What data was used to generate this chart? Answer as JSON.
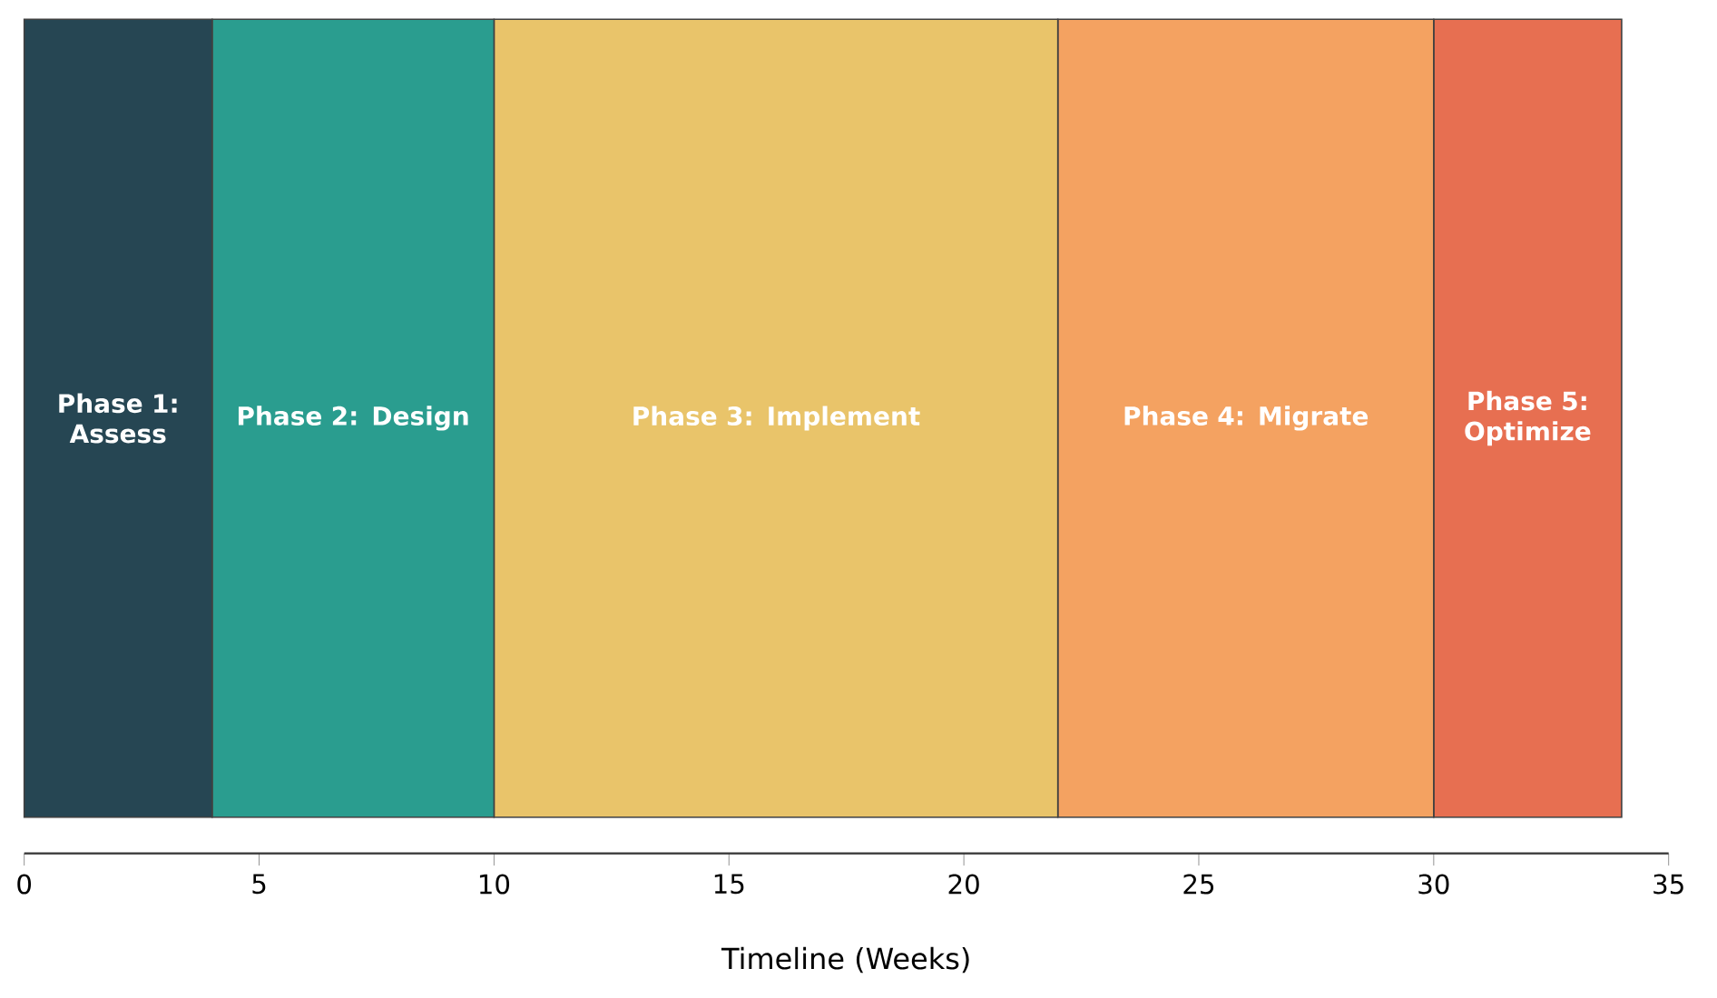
{
  "chart_data": {
    "type": "bar",
    "orientation": "horizontal",
    "stacked": true,
    "xlabel": "Timeline (Weeks)",
    "categories": [
      null
    ],
    "series": [
      {
        "name": "Phase 1: Assess",
        "color": "#264653",
        "values": [
          4
        ]
      },
      {
        "name": "Phase 2: Design",
        "color": "#2a9d8f",
        "values": [
          6
        ]
      },
      {
        "name": "Phase 3: Implement",
        "color": "#e9c46a",
        "values": [
          12
        ]
      },
      {
        "name": "Phase 4: Migrate",
        "color": "#f4a261",
        "values": [
          8
        ]
      },
      {
        "name": "Phase 5: Optimize",
        "color": "#e76f51",
        "values": [
          4
        ]
      }
    ],
    "xlim": [
      0,
      35
    ],
    "xticks": [
      0,
      5,
      10,
      15,
      20,
      25,
      30,
      35
    ],
    "tick_labels": "x",
    "grid": false
  }
}
